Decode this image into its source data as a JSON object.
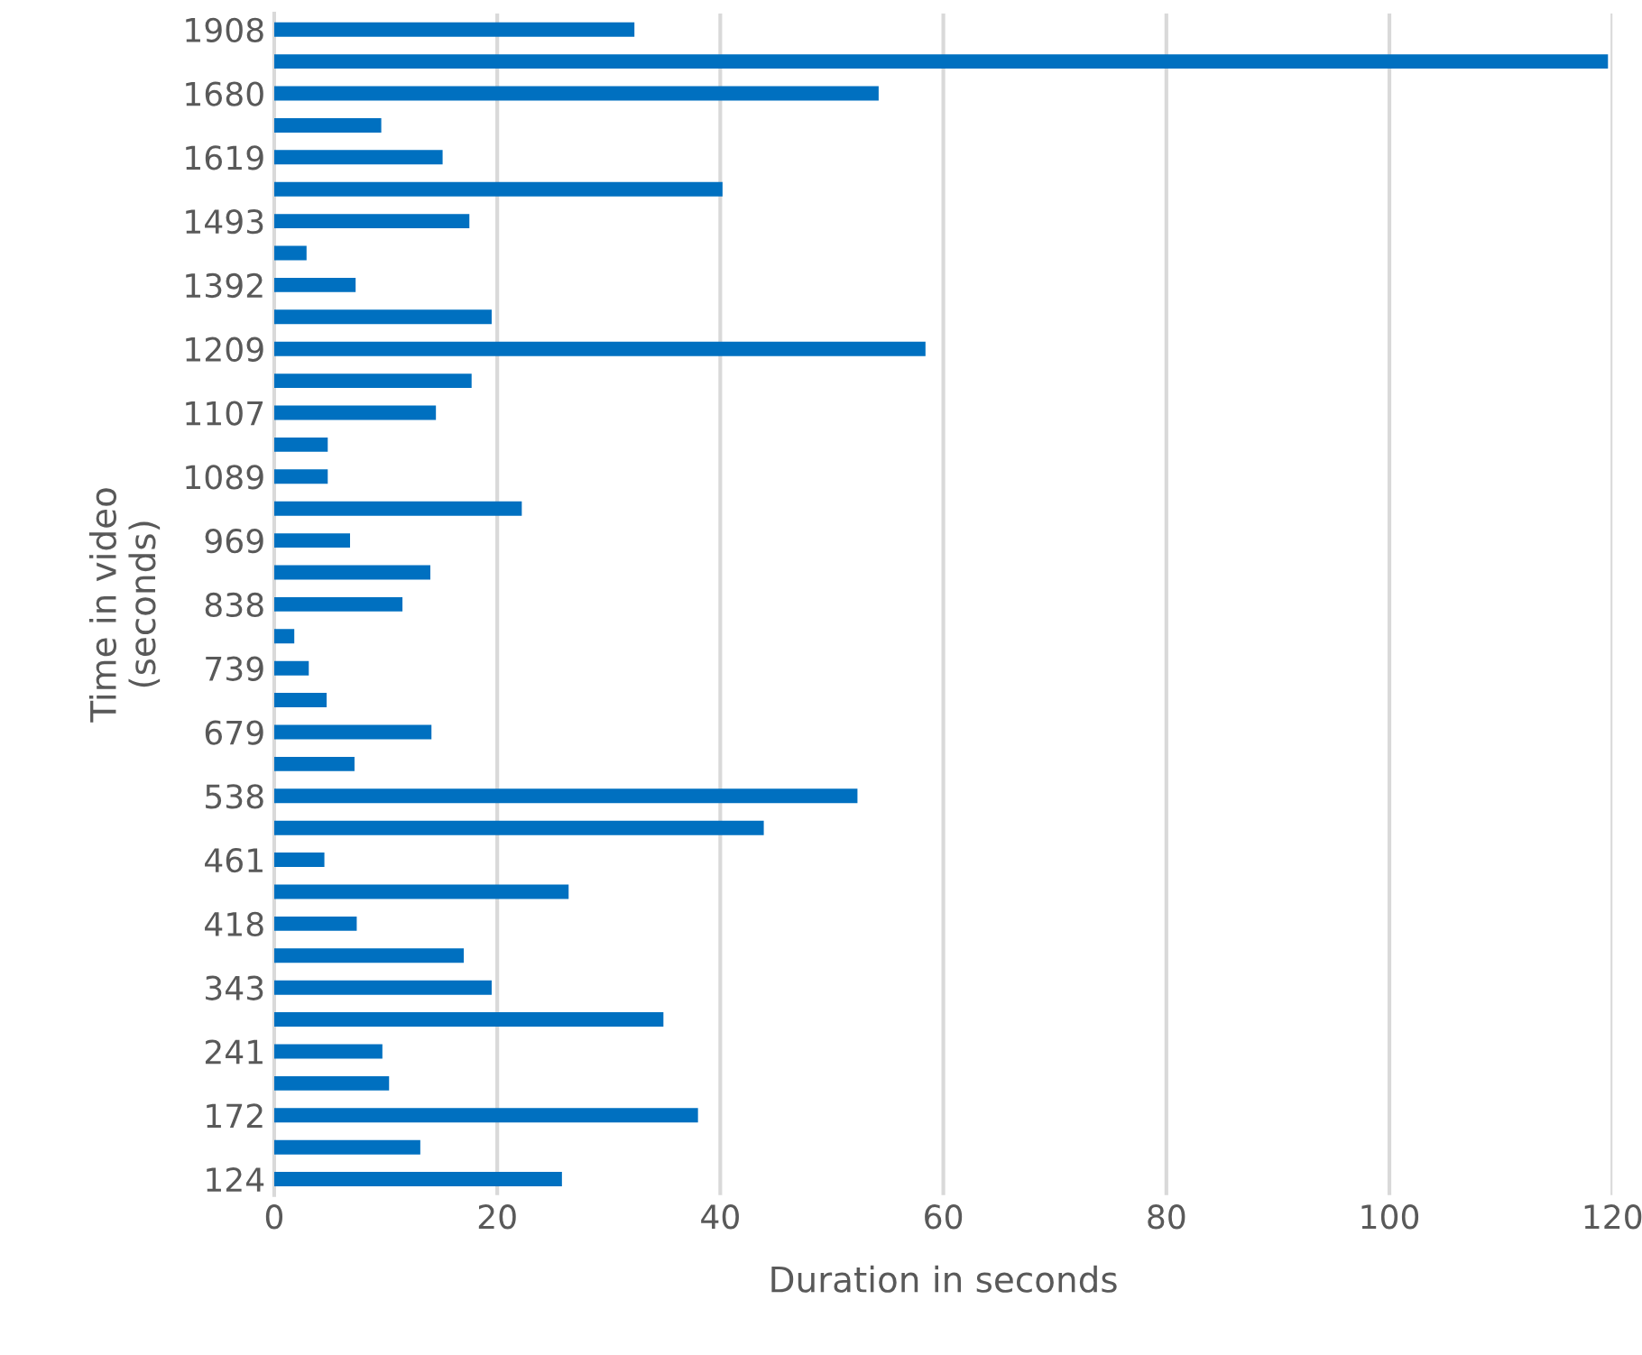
{
  "chart_data": {
    "type": "bar",
    "orientation": "horizontal",
    "xlabel": "Duration in seconds",
    "ylabel": "Time in video\n(seconds)",
    "categories": [
      "1908",
      null,
      "1680",
      null,
      "1619",
      null,
      "1493",
      null,
      "1392",
      null,
      "1209",
      null,
      "1107",
      null,
      "1089",
      null,
      "969",
      null,
      "838",
      null,
      "739",
      null,
      "679",
      null,
      "538",
      null,
      "461",
      null,
      "418",
      null,
      "343",
      null,
      "241",
      null,
      "172",
      null,
      "124"
    ],
    "values": [
      32.3,
      119.6,
      54.2,
      9.6,
      15.1,
      40.2,
      17.5,
      2.9,
      7.3,
      19.5,
      58.4,
      17.7,
      14.5,
      4.8,
      4.8,
      22.2,
      6.8,
      14.0,
      11.5,
      1.8,
      3.1,
      4.7,
      14.1,
      7.2,
      52.3,
      43.9,
      4.5,
      26.4,
      7.4,
      17.0,
      19.5,
      34.9,
      9.7,
      10.3,
      38.0,
      13.1,
      25.8
    ],
    "color": "#0070c0",
    "xlim": [
      0,
      120
    ],
    "xticks": [
      0,
      20,
      40,
      60,
      80,
      100,
      120
    ],
    "grid": "x"
  }
}
